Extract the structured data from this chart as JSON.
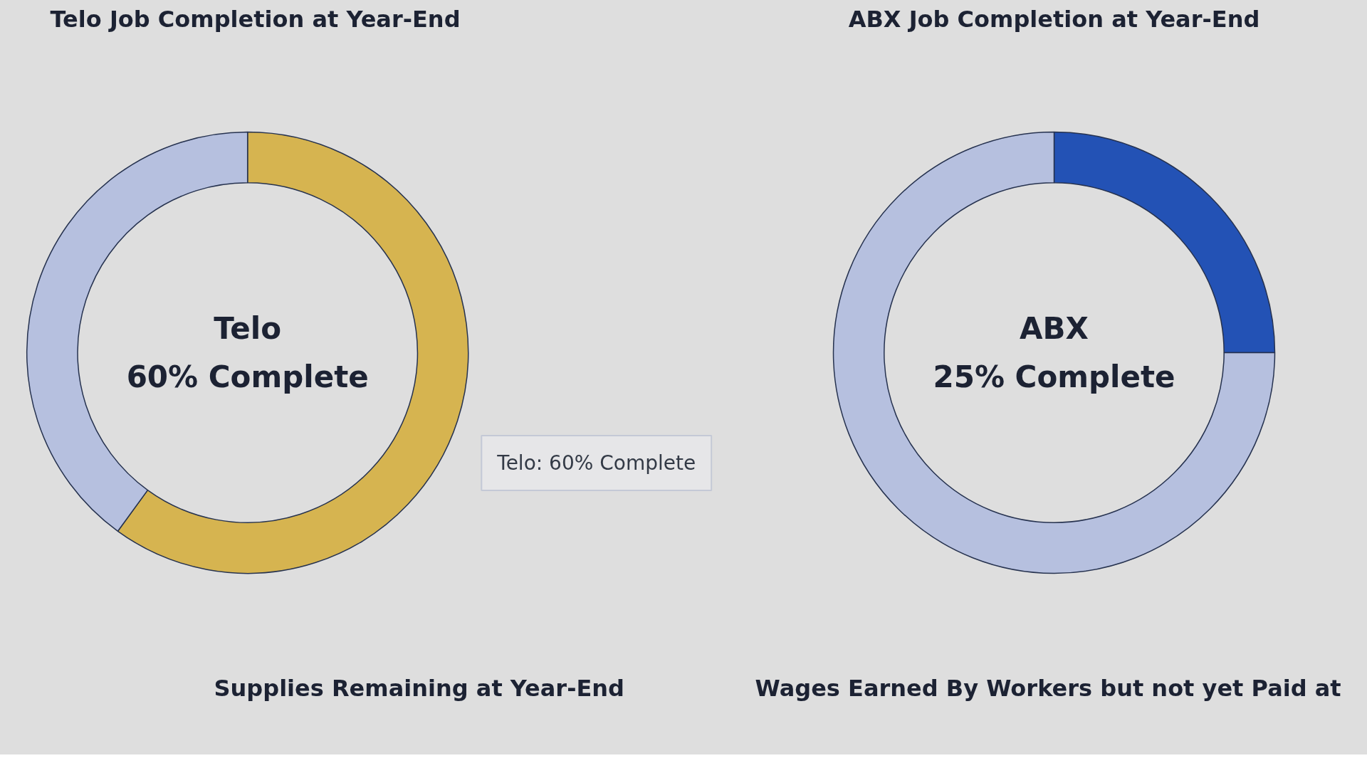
{
  "chart_data": [
    {
      "type": "donut",
      "title": "Telo Job Completion at Year-End",
      "categories": [
        null,
        null
      ],
      "values": [
        60,
        40
      ],
      "colors": [
        "#d6b450",
        "#b6c0df"
      ],
      "annotations": [
        "Telo",
        "60% Complete",
        "Telo: 60% Complete"
      ]
    },
    {
      "type": "donut",
      "title": "ABX Job Completion at Year-End",
      "categories": [
        null,
        null
      ],
      "values": [
        25,
        75
      ],
      "colors": [
        "#2352b5",
        "#b6c0df"
      ],
      "annotations": [
        "ABX",
        "25% Complete"
      ]
    },
    {
      "type": "other",
      "title": "Supplies Remaining at Year-End"
    },
    {
      "type": "other",
      "title": "Wages Earned By Workers but not yet Paid at"
    }
  ]
}
